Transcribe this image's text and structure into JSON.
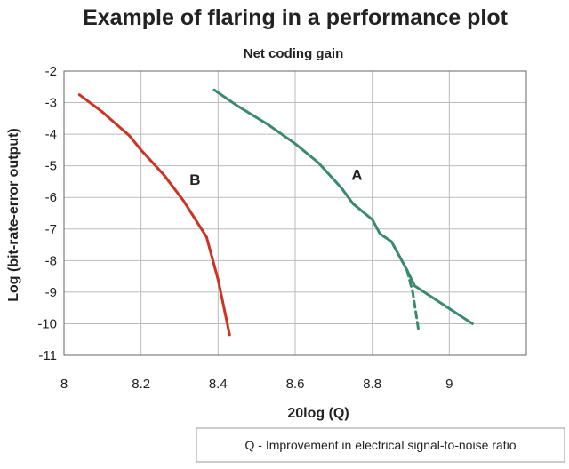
{
  "chart_data": {
    "type": "line",
    "title": "Example of flaring in a performance plot",
    "subtitle": "Net coding gain",
    "xlabel": "20log (Q)",
    "ylabel": "Log (bit-rate-error output)",
    "xlim": [
      8,
      9.2
    ],
    "ylim": [
      -11,
      -2
    ],
    "xticks": [
      "8",
      "8.2",
      "8.4",
      "8.6",
      "8.8",
      "9"
    ],
    "yticks": [
      "-2",
      "-3",
      "-4",
      "-5",
      "-6",
      "-7",
      "-8",
      "-9",
      "-10",
      "-11"
    ],
    "grid": true,
    "note": "Q - Improvement in electrical signal-to-noise ratio",
    "series": [
      {
        "name": "B",
        "color": "#cc3322",
        "style": "solid",
        "label_at": [
          8.34,
          -5.6
        ],
        "points": [
          [
            8.04,
            -2.75
          ],
          [
            8.1,
            -3.3
          ],
          [
            8.17,
            -4.05
          ],
          [
            8.2,
            -4.5
          ],
          [
            8.26,
            -5.3
          ],
          [
            8.31,
            -6.1
          ],
          [
            8.37,
            -7.25
          ],
          [
            8.4,
            -8.6
          ],
          [
            8.43,
            -10.35
          ]
        ]
      },
      {
        "name": "A",
        "color": "#3a8a6e",
        "style": "solid",
        "label_at": [
          8.76,
          -5.45
        ],
        "points": [
          [
            8.39,
            -2.6
          ],
          [
            8.45,
            -3.1
          ],
          [
            8.53,
            -3.7
          ],
          [
            8.6,
            -4.3
          ],
          [
            8.66,
            -4.9
          ],
          [
            8.72,
            -5.7
          ],
          [
            8.75,
            -6.2
          ],
          [
            8.8,
            -6.7
          ],
          [
            8.82,
            -7.15
          ],
          [
            8.85,
            -7.4
          ],
          [
            8.89,
            -8.3
          ],
          [
            8.91,
            -8.8
          ],
          [
            9.06,
            -10.0
          ]
        ]
      },
      {
        "name": "",
        "color": "#3a8a6e",
        "style": "dashed",
        "points": [
          [
            8.89,
            -8.3
          ],
          [
            8.905,
            -9.0
          ],
          [
            8.92,
            -10.2
          ]
        ]
      }
    ]
  }
}
